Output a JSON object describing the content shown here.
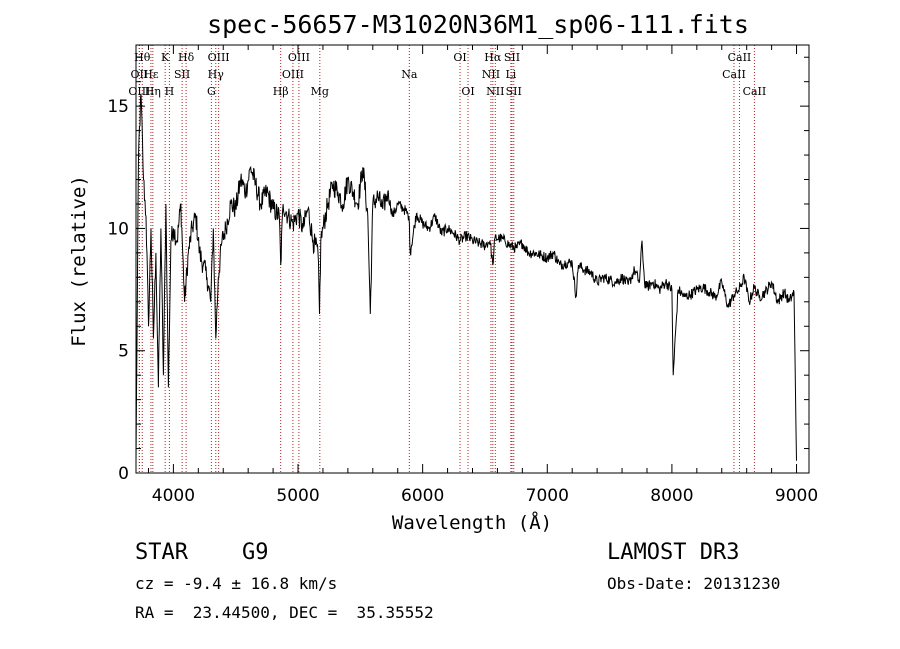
{
  "chart_data": {
    "type": "line",
    "title": "spec-56657-M31020N36M1_sp06-111.fits",
    "xlabel": "Wavelength (Å)",
    "ylabel": "Flux (relative)",
    "xlim": [
      3700,
      9100
    ],
    "ylim": [
      0,
      17.5
    ],
    "x_ticks": [
      4000,
      5000,
      6000,
      7000,
      8000,
      9000
    ],
    "x_tick_labels": [
      "4000",
      "5000",
      "6000",
      "7000",
      "8000",
      "9000"
    ],
    "y_ticks": [
      0,
      5,
      10,
      15
    ],
    "y_tick_labels": [
      "0",
      "5",
      "10",
      "15"
    ],
    "grid": false,
    "series": [
      {
        "name": "spectrum",
        "x": [
          3700,
          3720,
          3740,
          3760,
          3780,
          3800,
          3820,
          3840,
          3860,
          3880,
          3900,
          3920,
          3940,
          3960,
          3980,
          4000,
          4030,
          4060,
          4090,
          4120,
          4150,
          4180,
          4210,
          4240,
          4270,
          4300,
          4320,
          4340,
          4360,
          4390,
          4420,
          4460,
          4500,
          4540,
          4580,
          4620,
          4660,
          4700,
          4750,
          4800,
          4850,
          4861,
          4880,
          4920,
          4960,
          5000,
          5040,
          5080,
          5120,
          5160,
          5172,
          5183,
          5200,
          5240,
          5280,
          5320,
          5360,
          5400,
          5440,
          5480,
          5520,
          5560,
          5580,
          5600,
          5640,
          5680,
          5720,
          5760,
          5800,
          5850,
          5890,
          5900,
          5950,
          6000,
          6050,
          6100,
          6150,
          6200,
          6250,
          6300,
          6350,
          6400,
          6450,
          6500,
          6540,
          6563,
          6580,
          6620,
          6660,
          6700,
          6750,
          6800,
          6850,
          6900,
          6950,
          7000,
          7050,
          7100,
          7150,
          7200,
          7230,
          7250,
          7300,
          7350,
          7400,
          7450,
          7500,
          7550,
          7600,
          7650,
          7700,
          7740,
          7760,
          7780,
          7800,
          7850,
          7900,
          7950,
          8000,
          8010,
          8050,
          8100,
          8150,
          8200,
          8250,
          8300,
          8350,
          8400,
          8450,
          8500,
          8540,
          8580,
          8620,
          8660,
          8700,
          8750,
          8800,
          8850,
          8900,
          8940,
          8980,
          9000
        ],
        "y": [
          0.5,
          13.0,
          15.5,
          12.0,
          10.5,
          6.0,
          10.0,
          5.5,
          9.0,
          3.5,
          10.0,
          4.0,
          11.0,
          3.5,
          9.5,
          10.0,
          9.5,
          11.0,
          7.0,
          9.0,
          10.0,
          10.5,
          9.0,
          8.5,
          8.0,
          7.0,
          10.0,
          5.5,
          8.0,
          9.5,
          10.0,
          11.0,
          10.8,
          12.0,
          11.5,
          12.5,
          11.8,
          11.0,
          11.5,
          10.8,
          10.5,
          8.5,
          11.0,
          10.5,
          10.2,
          10.6,
          10.0,
          10.8,
          9.5,
          9.0,
          6.5,
          9.5,
          10.0,
          11.0,
          11.8,
          11.5,
          11.0,
          12.0,
          11.5,
          11.0,
          12.5,
          10.5,
          6.5,
          11.0,
          11.3,
          10.8,
          11.5,
          10.5,
          11.0,
          10.8,
          10.5,
          9.0,
          10.6,
          10.2,
          10.0,
          10.5,
          9.8,
          10.0,
          9.8,
          9.5,
          9.7,
          9.5,
          9.4,
          9.3,
          9.5,
          8.5,
          9.6,
          9.6,
          9.5,
          9.3,
          9.2,
          9.4,
          9.0,
          9.0,
          8.9,
          8.8,
          9.0,
          8.5,
          8.6,
          8.6,
          7.2,
          8.5,
          8.3,
          8.2,
          7.8,
          8.0,
          7.9,
          7.8,
          8.0,
          7.7,
          8.3,
          7.8,
          9.5,
          7.8,
          7.6,
          7.8,
          7.5,
          7.8,
          7.5,
          4.0,
          7.5,
          7.2,
          7.3,
          7.5,
          7.6,
          7.4,
          7.2,
          7.8,
          6.8,
          7.3,
          7.5,
          8.0,
          7.0,
          7.6,
          7.2,
          7.4,
          7.8,
          7.0,
          7.4,
          7.0,
          7.4,
          0.5
        ]
      }
    ],
    "lines": [
      {
        "label": "Hθ",
        "x": 3750,
        "tier": 0
      },
      {
        "label": "K",
        "x": 3934,
        "tier": 0
      },
      {
        "label": "Hδ",
        "x": 4102,
        "tier": 0
      },
      {
        "label": "OIII",
        "x": 4363,
        "tier": 0
      },
      {
        "label": "OIII",
        "x": 5007,
        "tier": 0
      },
      {
        "label": "OI",
        "x": 6300,
        "tier": 0
      },
      {
        "label": "Hα",
        "x": 6563,
        "tier": 0
      },
      {
        "label": "SII",
        "x": 6717,
        "tier": 0
      },
      {
        "label": "CaII",
        "x": 8542,
        "tier": 0
      },
      {
        "label": "OII",
        "x": 3727,
        "tier": 1
      },
      {
        "label": "Hε",
        "x": 3820,
        "tier": 1
      },
      {
        "label": "SII",
        "x": 4070,
        "tier": 1
      },
      {
        "label": "Hγ",
        "x": 4340,
        "tier": 1
      },
      {
        "label": "OIII",
        "x": 4959,
        "tier": 1
      },
      {
        "label": "Na",
        "x": 5893,
        "tier": 1
      },
      {
        "label": "NII",
        "x": 6548,
        "tier": 1
      },
      {
        "label": "Li",
        "x": 6708,
        "tier": 1
      },
      {
        "label": "CaII",
        "x": 8498,
        "tier": 1
      },
      {
        "label": "OIII",
        "x": 3727,
        "tier": 2
      },
      {
        "label": "Hη",
        "x": 3835,
        "tier": 2
      },
      {
        "label": "H",
        "x": 3968,
        "tier": 2
      },
      {
        "label": "G",
        "x": 4305,
        "tier": 2
      },
      {
        "label": "Hβ",
        "x": 4861,
        "tier": 2
      },
      {
        "label": "Mg",
        "x": 5175,
        "tier": 2
      },
      {
        "label": "OI",
        "x": 6364,
        "tier": 2
      },
      {
        "label": "NII",
        "x": 6583,
        "tier": 2
      },
      {
        "label": "SII",
        "x": 6731,
        "tier": 2
      },
      {
        "label": "CaII",
        "x": 8662,
        "tier": 2
      }
    ]
  },
  "info": {
    "object_class": "STAR",
    "subclass": "G9",
    "survey": "LAMOST DR3",
    "redshift": "cz = -9.4 ± 16.8 km/s",
    "obs_date": "Obs-Date: 20131230",
    "coords": "RA =  23.44500, DEC =  35.35552"
  }
}
